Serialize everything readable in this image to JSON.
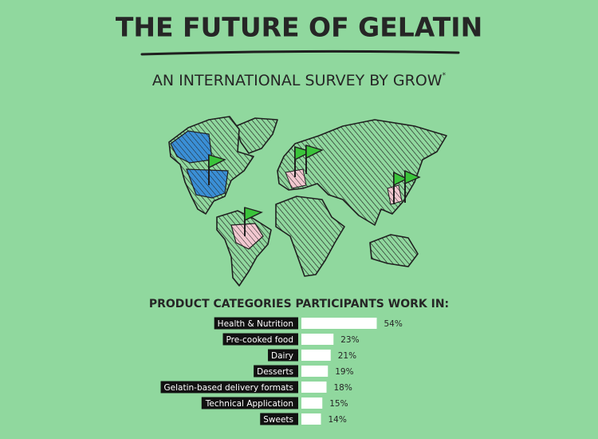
{
  "chart_data": {
    "type": "bar",
    "orientation": "horizontal",
    "title": "THE FUTURE OF GELATIN",
    "subtitle": "AN INTERNATIONAL SURVEY BY GROW",
    "subtitle_marker": "*",
    "chart_title": "PRODUCT CATEGORIES PARTICIPANTS WORK IN:",
    "categories": [
      "Health & Nutrition",
      "Pre-cooked food",
      "Dairy",
      "Desserts",
      "Gelatin-based delivery formats",
      "Technical Application",
      "Sweets"
    ],
    "values": [
      54,
      23,
      21,
      19,
      18,
      15,
      14
    ],
    "value_labels": [
      "54%",
      "23%",
      "21%",
      "19%",
      "18%",
      "15%",
      "14%"
    ],
    "color": "#ffffff",
    "label_background": "#111111"
  }
}
